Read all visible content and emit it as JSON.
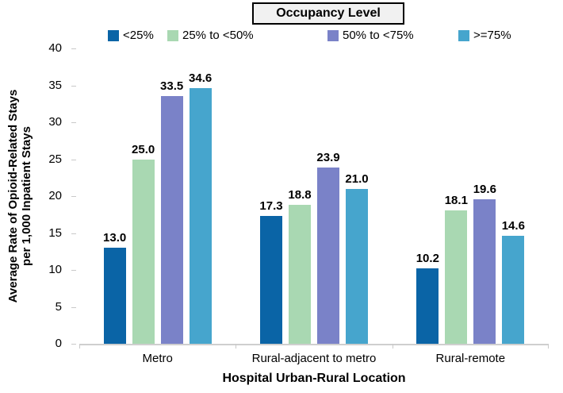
{
  "chart_data": {
    "type": "bar",
    "legend_title": "Occupancy Level",
    "xlabel": "Hospital Urban-Rural Location",
    "ylabel": "Average Rate of Opioid-Related Stays per 1,000 Inpatient Stays",
    "ylabel_lines": [
      "Average Rate of Opioid-Related Stays",
      "per 1,000 Inpatient Stays"
    ],
    "categories": [
      "Metro",
      "Rural-adjacent to metro",
      "Rural-remote"
    ],
    "series": [
      {
        "name": "<25%",
        "color": "#0A64A6",
        "values": [
          13.0,
          17.3,
          10.2
        ]
      },
      {
        "name": "25% to <50%",
        "color": "#A9D8B2",
        "values": [
          25.0,
          18.8,
          18.1
        ]
      },
      {
        "name": "50% to <75%",
        "color": "#7A82C8",
        "values": [
          33.5,
          23.9,
          19.6
        ]
      },
      {
        "name": ">=75%",
        "color": "#46A5CD",
        "values": [
          34.6,
          21.0,
          14.6
        ]
      }
    ],
    "data_labels": [
      "13.0",
      "25.0",
      "33.5",
      "34.6",
      "17.3",
      "18.8",
      "23.9",
      "21.0",
      "10.2",
      "18.1",
      "19.6",
      "14.6"
    ],
    "ylim": [
      0,
      40
    ],
    "yticks": [
      0,
      5,
      10,
      15,
      20,
      25,
      30,
      35,
      40
    ],
    "grid": false,
    "legend_position": "top",
    "label_decimals": 1
  },
  "colors": {
    "axis_line": "#CFCFCF",
    "tick_mark": "#C9C9C9",
    "text": "#000000",
    "legend_box_bg": "#F1F1F1",
    "background": "#FFFFFF"
  }
}
